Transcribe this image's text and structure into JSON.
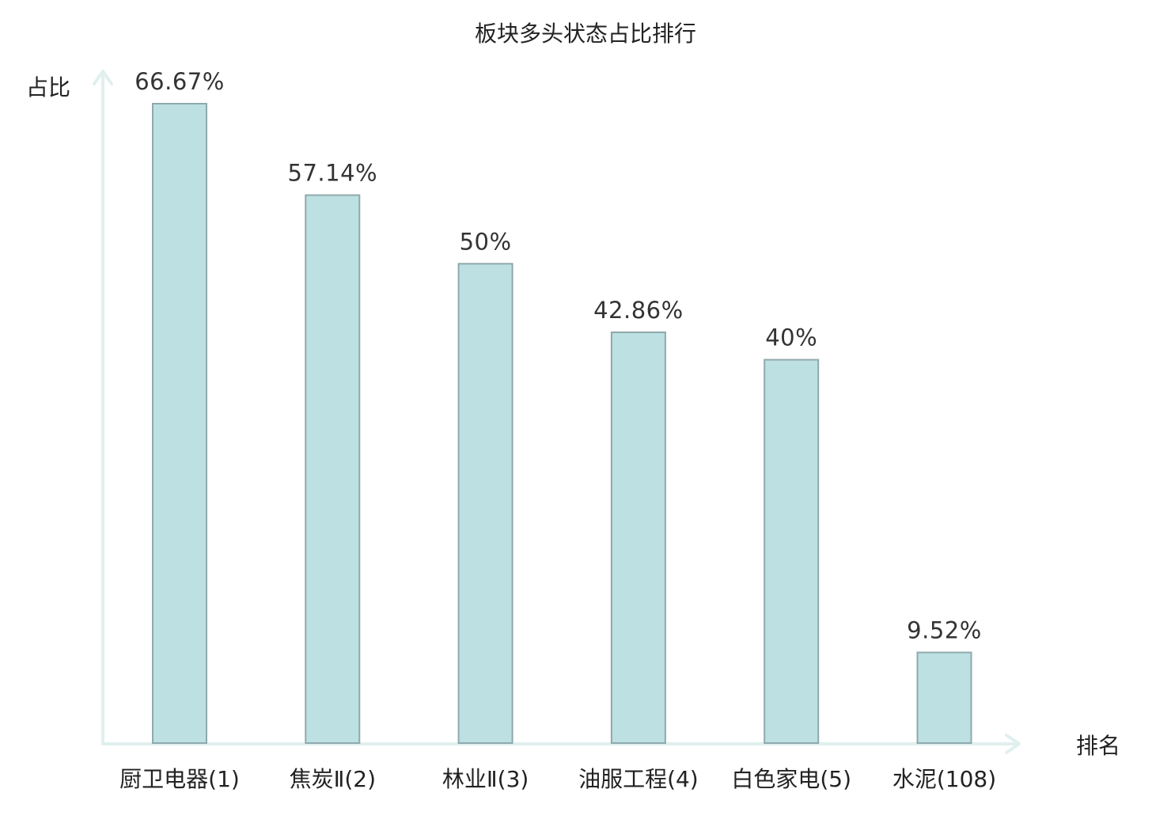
{
  "chart_data": {
    "type": "bar",
    "title": "板块多头状态占比排行",
    "ylabel": "占比",
    "xlabel": "排名",
    "ylim": [
      0,
      70
    ],
    "grid": false,
    "categories": [
      "厨卫电器(1)",
      "焦炭Ⅱ(2)",
      "林业Ⅱ(3)",
      "油服工程(4)",
      "白色家电(5)",
      "水泥(108)"
    ],
    "values": [
      66.67,
      57.14,
      50,
      42.86,
      40,
      9.52
    ],
    "value_labels": [
      "66.67%",
      "57.14%",
      "50%",
      "42.86%",
      "40%",
      "9.52%"
    ],
    "highlight_index": 5,
    "colors": {
      "bar_fill": "#bde0e3",
      "bar_stroke": "#8fa9ad",
      "axis": "#dff0ee",
      "highlight_text": "#e02020",
      "text": "#222222"
    }
  }
}
